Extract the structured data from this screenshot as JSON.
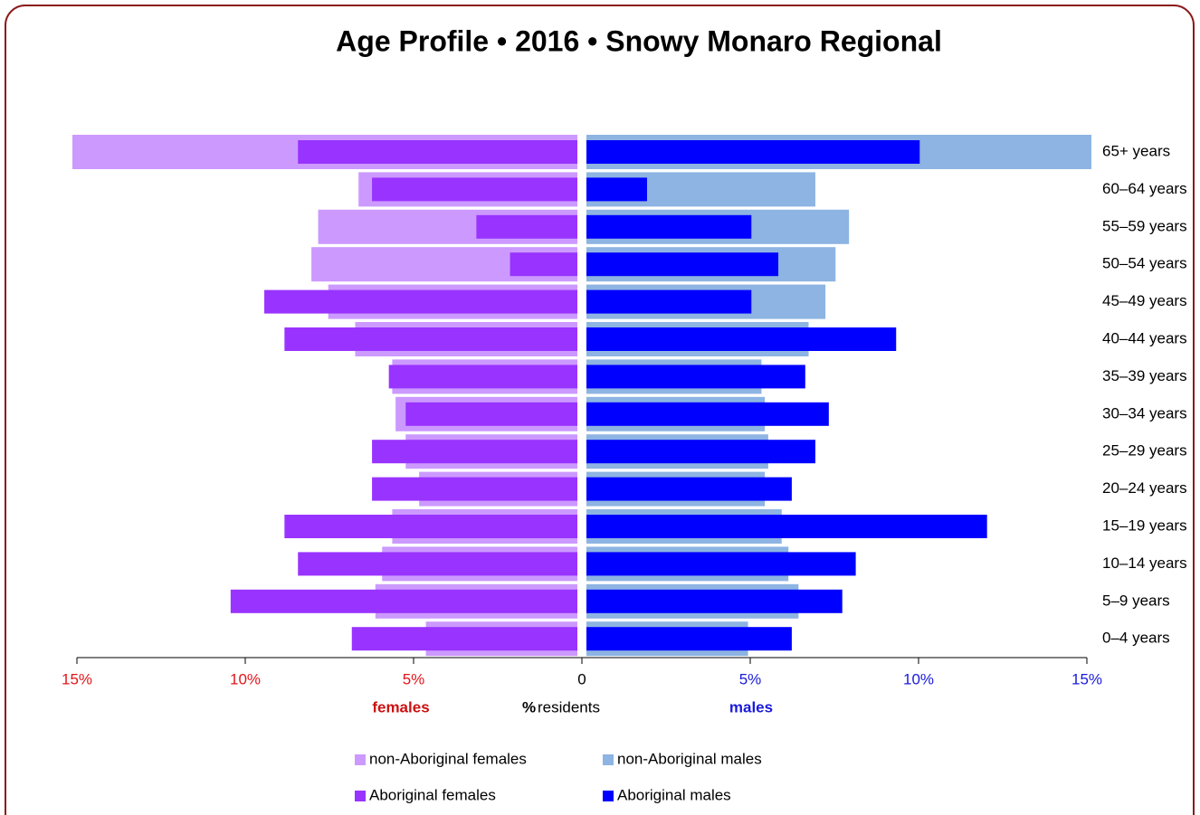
{
  "chart_data": {
    "type": "pyramid",
    "title": "Age Profile  •  2016  •  Snowy Monaro Regional",
    "categories": [
      "65+ years",
      "60–64 years",
      "55–59 years",
      "50–54 years",
      "45–49 years",
      "40–44 years",
      "35–39 years",
      "30–34 years",
      "25–29 years",
      "20–24 years",
      "15–19 years",
      "10–14 years",
      "5–9 years",
      "0–4 years"
    ],
    "xlim": [
      0,
      15
    ],
    "left_ticks": [
      {
        "value": 15,
        "label": "15%"
      },
      {
        "value": 10,
        "label": "10%"
      },
      {
        "value": 5,
        "label": "5%"
      }
    ],
    "center_tick": 0,
    "right_ticks": [
      {
        "value": 5,
        "label": "5%"
      },
      {
        "value": 10,
        "label": "10%"
      },
      {
        "value": 15,
        "label": "15%"
      }
    ],
    "left_label": "females",
    "right_label": "males",
    "axis_label_unit": "%",
    "axis_label": "residents",
    "series": [
      {
        "name": "non-Aboriginal females",
        "color": "#cc99ff",
        "side": "left",
        "layer": "back",
        "values": [
          15,
          6.5,
          7.7,
          7.9,
          7.4,
          6.6,
          5.5,
          5.4,
          5.1,
          4.7,
          5.5,
          5.8,
          6.0,
          4.5
        ]
      },
      {
        "name": "non-Aboriginal males",
        "color": "#8db4e2",
        "side": "right",
        "layer": "back",
        "values": [
          15,
          6.8,
          7.8,
          7.4,
          7.1,
          6.6,
          5.2,
          5.3,
          5.4,
          5.3,
          5.8,
          6.0,
          6.3,
          4.8
        ]
      },
      {
        "name": "Aboriginal females",
        "color": "#9933ff",
        "side": "left",
        "layer": "front",
        "values": [
          8.3,
          6.1,
          3.0,
          2.0,
          9.3,
          8.7,
          5.6,
          5.1,
          6.1,
          6.1,
          8.7,
          8.3,
          10.3,
          6.7
        ]
      },
      {
        "name": "Aboriginal males",
        "color": "#0000ff",
        "side": "right",
        "layer": "front",
        "values": [
          9.9,
          1.8,
          4.9,
          5.7,
          4.9,
          9.2,
          6.5,
          7.2,
          6.8,
          6.1,
          11.9,
          8.0,
          7.6,
          6.1
        ]
      }
    ]
  }
}
